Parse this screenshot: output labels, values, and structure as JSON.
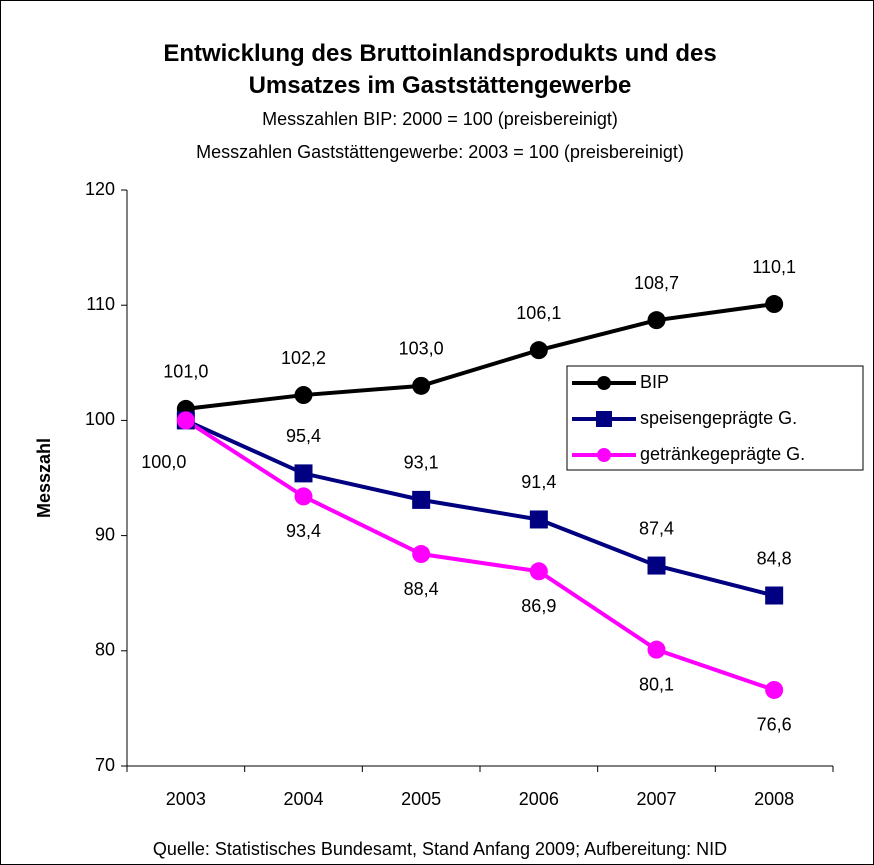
{
  "chart_data": {
    "type": "line",
    "title": "Entwicklung des Bruttoinlandsprodukts und des Umsatzes im Gaststättengewerbe",
    "subtitle": [
      "Messzahlen BIP: 2000 = 100 (preisbereinigt)",
      "Messzahlen Gaststättengewerbe: 2003 = 100 (preisbereinigt)"
    ],
    "y_label": "Messzahl",
    "source": "Quelle: Statistisches Bundesamt, Stand Anfang 2009; Aufbereitung: NID",
    "categories": [
      "2003",
      "2004",
      "2005",
      "2006",
      "2007",
      "2008"
    ],
    "series": [
      {
        "name": "BIP",
        "color": "#000000",
        "marker": "circle",
        "values": [
          101.0,
          102.2,
          103.0,
          106.1,
          108.7,
          110.1
        ],
        "value_labels": [
          "101,0",
          "102,2",
          "103,0",
          "106,1",
          "108,7",
          "110,1"
        ]
      },
      {
        "name": "speisengeprägte G.",
        "color": "#000080",
        "marker": "square",
        "values": [
          100.0,
          95.4,
          93.1,
          91.4,
          87.4,
          84.8
        ],
        "value_labels": [
          "100,0",
          "95,4",
          "93,1",
          "91,4",
          "87,4",
          "84,8"
        ]
      },
      {
        "name": "getränkegeprägte G.",
        "color": "#ff00ff",
        "marker": "circle",
        "values": [
          100.0,
          93.4,
          88.4,
          86.9,
          80.1,
          76.6
        ],
        "value_labels": [
          null,
          "93,4",
          "88,4",
          "86,9",
          "80,1",
          "76,6"
        ]
      }
    ],
    "ylim": [
      70,
      120
    ],
    "yticks": [
      70,
      80,
      90,
      100,
      110,
      120
    ],
    "grid": false,
    "legend": "right"
  }
}
